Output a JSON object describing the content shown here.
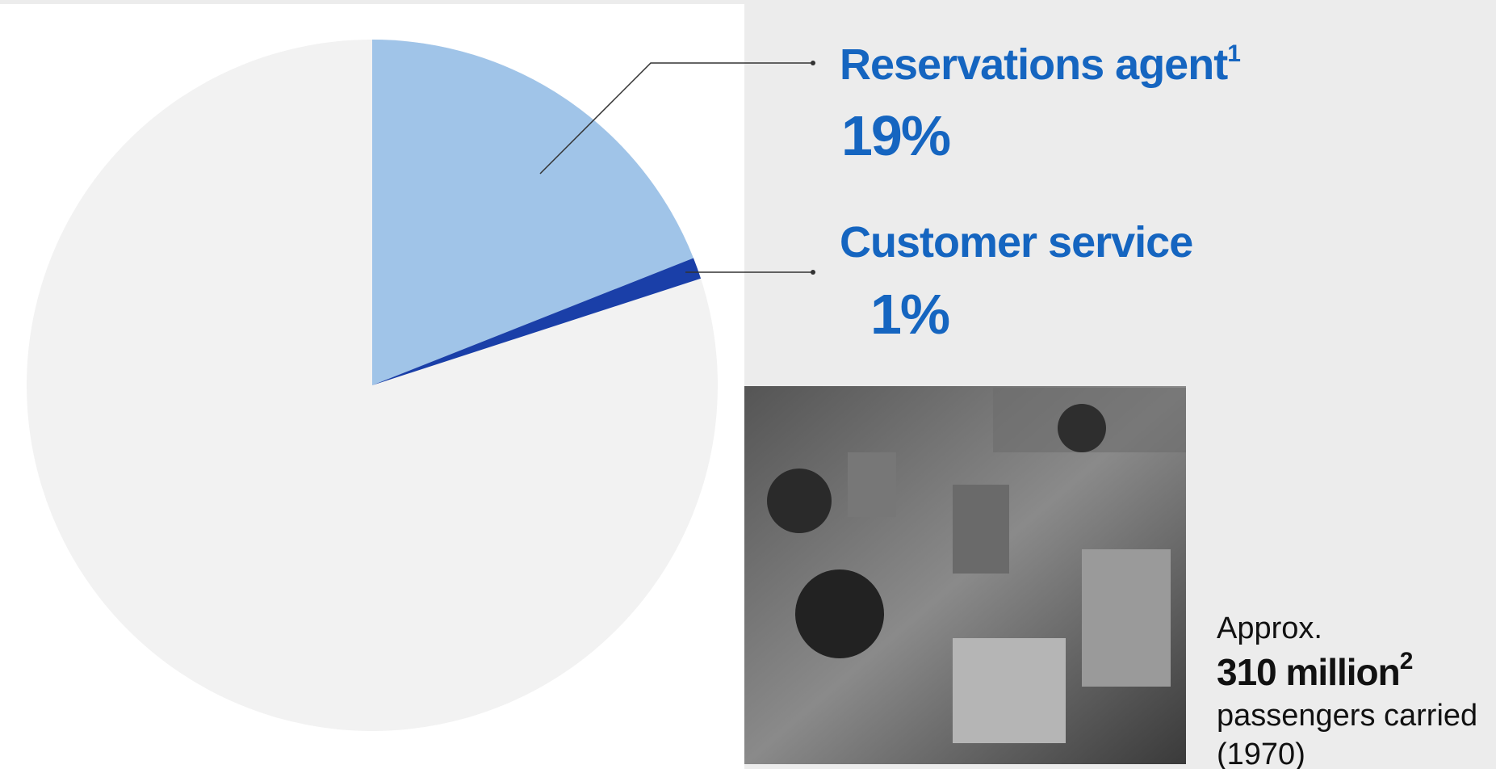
{
  "chart_data": {
    "type": "pie",
    "categories": [
      "Reservations agent",
      "Customer service"
    ],
    "category_footnotes": [
      "1",
      null
    ],
    "values": [
      19,
      1
    ],
    "value_labels": [
      "19%",
      "1%"
    ],
    "colors": [
      "#a0c4e8",
      "#1a3fa8"
    ],
    "note": {
      "prefix": "Approx.",
      "figure": "310 million",
      "figure_footnote": "2",
      "line1": "passengers carried",
      "line2": "(1970)"
    }
  }
}
